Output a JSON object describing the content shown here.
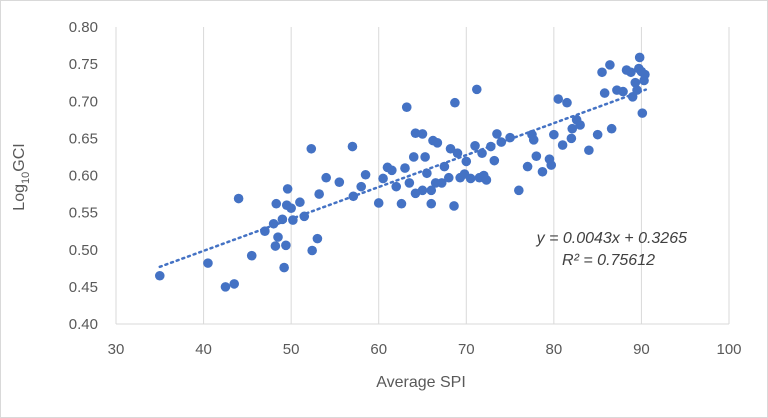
{
  "chart_data": {
    "type": "scatter",
    "title": "",
    "xlabel": "Average SPI",
    "ylabel": {
      "prefix": "Log",
      "sub": "10",
      "suffix": "GCI"
    },
    "xlim": [
      30,
      100
    ],
    "ylim": [
      0.4,
      0.8
    ],
    "x_ticks": [
      30,
      40,
      50,
      60,
      70,
      80,
      90,
      100
    ],
    "y_ticks": [
      0.4,
      0.45,
      0.5,
      0.55,
      0.6,
      0.65,
      0.7,
      0.75,
      0.8
    ],
    "x_tick_labels": [
      "30",
      "40",
      "50",
      "60",
      "70",
      "80",
      "90",
      "100"
    ],
    "y_tick_labels": [
      "0.40",
      "0.45",
      "0.50",
      "0.55",
      "0.60",
      "0.65",
      "0.70",
      "0.75",
      "0.80"
    ],
    "grid": "vertical",
    "colors": {
      "points": "#4472c4",
      "trendline": "#4472c4",
      "grid": "#d9d9d9",
      "text": "#595959"
    },
    "trendline": {
      "style": "dotted",
      "slope": 0.0043,
      "intercept": 0.3265,
      "x_range": [
        35,
        90.5
      ]
    },
    "equation_label": "y = 0.0043x + 0.3265",
    "r2_label": "R² = 0.75612",
    "points": [
      [
        35,
        0.465
      ],
      [
        40.5,
        0.482
      ],
      [
        42.5,
        0.45
      ],
      [
        43.5,
        0.454
      ],
      [
        44,
        0.569
      ],
      [
        45.5,
        0.492
      ],
      [
        47,
        0.525
      ],
      [
        48,
        0.535
      ],
      [
        48.2,
        0.505
      ],
      [
        48.3,
        0.562
      ],
      [
        48.5,
        0.517
      ],
      [
        49,
        0.541
      ],
      [
        49.2,
        0.476
      ],
      [
        49.4,
        0.506
      ],
      [
        49.5,
        0.56
      ],
      [
        49.6,
        0.582
      ],
      [
        50,
        0.556
      ],
      [
        50.2,
        0.54
      ],
      [
        51,
        0.564
      ],
      [
        51.5,
        0.545
      ],
      [
        52.3,
        0.636
      ],
      [
        52.4,
        0.499
      ],
      [
        53,
        0.515
      ],
      [
        53.2,
        0.575
      ],
      [
        54,
        0.597
      ],
      [
        55.5,
        0.591
      ],
      [
        57,
        0.639
      ],
      [
        57.1,
        0.572
      ],
      [
        58,
        0.585
      ],
      [
        58.5,
        0.601
      ],
      [
        60,
        0.563
      ],
      [
        60.5,
        0.596
      ],
      [
        61,
        0.611
      ],
      [
        61.5,
        0.607
      ],
      [
        62,
        0.585
      ],
      [
        62.6,
        0.562
      ],
      [
        63,
        0.61
      ],
      [
        63.2,
        0.692
      ],
      [
        63.5,
        0.59
      ],
      [
        64,
        0.625
      ],
      [
        64.2,
        0.576
      ],
      [
        64.2,
        0.657
      ],
      [
        65,
        0.656
      ],
      [
        65,
        0.58
      ],
      [
        65.3,
        0.625
      ],
      [
        65.5,
        0.603
      ],
      [
        66,
        0.58
      ],
      [
        66,
        0.562
      ],
      [
        66.2,
        0.647
      ],
      [
        66.5,
        0.59
      ],
      [
        66.7,
        0.644
      ],
      [
        67.2,
        0.59
      ],
      [
        67.5,
        0.612
      ],
      [
        68,
        0.597
      ],
      [
        68.2,
        0.636
      ],
      [
        68.6,
        0.559
      ],
      [
        68.7,
        0.698
      ],
      [
        69,
        0.63
      ],
      [
        69.3,
        0.597
      ],
      [
        69.8,
        0.602
      ],
      [
        70,
        0.619
      ],
      [
        70.5,
        0.596
      ],
      [
        71,
        0.64
      ],
      [
        71.2,
        0.716
      ],
      [
        71.5,
        0.597
      ],
      [
        71.8,
        0.63
      ],
      [
        72,
        0.6
      ],
      [
        72.3,
        0.594
      ],
      [
        72.8,
        0.639
      ],
      [
        73.2,
        0.62
      ],
      [
        73.5,
        0.656
      ],
      [
        74,
        0.645
      ],
      [
        75,
        0.651
      ],
      [
        76,
        0.58
      ],
      [
        77,
        0.612
      ],
      [
        77.5,
        0.655
      ],
      [
        77.7,
        0.648
      ],
      [
        78,
        0.626
      ],
      [
        78.7,
        0.605
      ],
      [
        79.5,
        0.622
      ],
      [
        79.7,
        0.614
      ],
      [
        80,
        0.655
      ],
      [
        80.5,
        0.703
      ],
      [
        81,
        0.641
      ],
      [
        81.5,
        0.698
      ],
      [
        82,
        0.65
      ],
      [
        82.1,
        0.663
      ],
      [
        82.6,
        0.675
      ],
      [
        83,
        0.668
      ],
      [
        84,
        0.634
      ],
      [
        85,
        0.655
      ],
      [
        85.5,
        0.739
      ],
      [
        85.8,
        0.711
      ],
      [
        86.4,
        0.749
      ],
      [
        86.6,
        0.663
      ],
      [
        87.2,
        0.715
      ],
      [
        87.9,
        0.713
      ],
      [
        88.3,
        0.742
      ],
      [
        88.8,
        0.739
      ],
      [
        89,
        0.706
      ],
      [
        89.3,
        0.725
      ],
      [
        89.5,
        0.715
      ],
      [
        89.7,
        0.744
      ],
      [
        89.8,
        0.759
      ],
      [
        90,
        0.74
      ],
      [
        90.1,
        0.684
      ],
      [
        90.3,
        0.728
      ],
      [
        90.4,
        0.736
      ]
    ]
  }
}
